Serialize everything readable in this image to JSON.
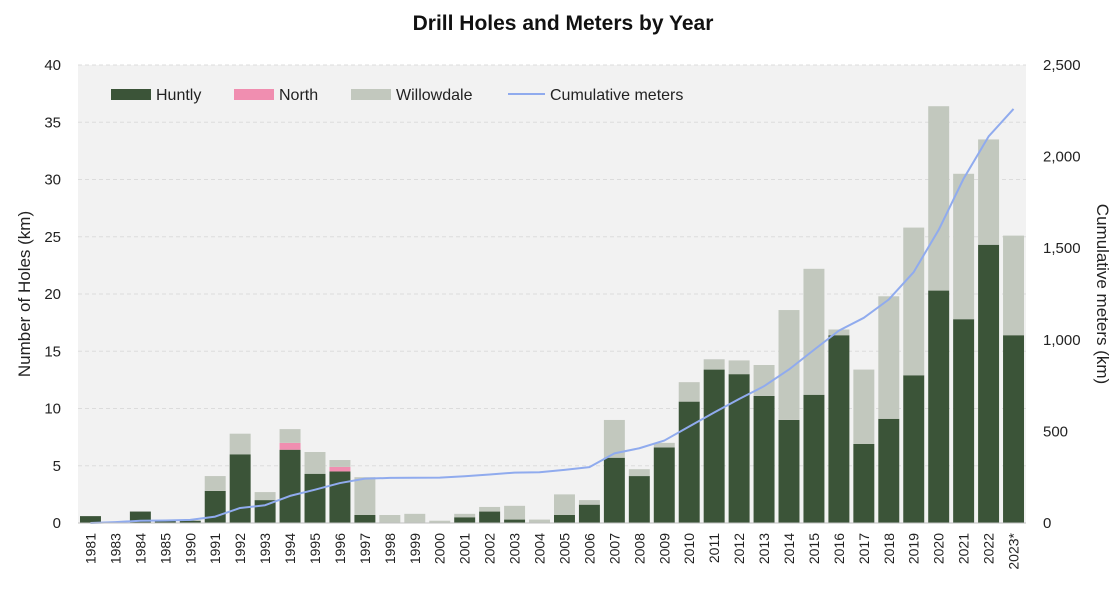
{
  "chart_data": {
    "type": "bar",
    "title": "Drill Holes and Meters by Year",
    "ylabel": "Number of Holes (km)",
    "y2label": "Cumulative meters (km)",
    "ylim": [
      0,
      40
    ],
    "y2lim": [
      0,
      2500
    ],
    "yticks": [
      "0",
      "5",
      "10",
      "15",
      "20",
      "25",
      "30",
      "35",
      "40"
    ],
    "y2ticks": [
      "0",
      "500",
      "1,000",
      "1,500",
      "2,000",
      "2,500"
    ],
    "grid": true,
    "legend_position": "top-left",
    "categories": [
      "1981",
      "1983",
      "1984",
      "1985",
      "1990",
      "1991",
      "1992",
      "1993",
      "1994",
      "1995",
      "1996",
      "1997",
      "1998",
      "1999",
      "2000",
      "2001",
      "2002",
      "2003",
      "2004",
      "2005",
      "2006",
      "2007",
      "2008",
      "2009",
      "2010",
      "2011",
      "2012",
      "2013",
      "2014",
      "2015",
      "2016",
      "2017",
      "2018",
      "2019",
      "2020",
      "2021",
      "2022",
      "2023*"
    ],
    "series": [
      {
        "name": "Huntly",
        "kind": "bar",
        "color": "#3b5438",
        "values": [
          0.6,
          0,
          1.0,
          0.2,
          0.2,
          2.8,
          6.0,
          2.0,
          6.4,
          4.3,
          4.5,
          0.7,
          0,
          0,
          0,
          0.5,
          1.0,
          0.3,
          0,
          0.7,
          1.6,
          5.7,
          4.1,
          6.6,
          10.6,
          13.4,
          13.0,
          11.1,
          9.0,
          11.2,
          16.4,
          6.9,
          9.1,
          12.9,
          20.3,
          17.8,
          24.3,
          16.4
        ]
      },
      {
        "name": "North",
        "kind": "bar",
        "color": "#f08eb0",
        "values": [
          0,
          0,
          0,
          0,
          0,
          0,
          0,
          0,
          0.6,
          0,
          0.4,
          0,
          0,
          0,
          0,
          0,
          0,
          0,
          0,
          0,
          0,
          0,
          0,
          0,
          0,
          0,
          0,
          0,
          0,
          0,
          0,
          0,
          0,
          0,
          0,
          0,
          0,
          0
        ]
      },
      {
        "name": "Willowdale",
        "kind": "bar",
        "color": "#c2c8be",
        "values": [
          0,
          0,
          0,
          0,
          0,
          1.3,
          1.8,
          0.7,
          1.2,
          1.9,
          0.6,
          3.3,
          0.7,
          0.8,
          0.2,
          0.3,
          0.4,
          1.2,
          0.3,
          1.8,
          0.4,
          3.3,
          0.6,
          0.4,
          1.7,
          0.9,
          1.2,
          2.7,
          9.6,
          11.0,
          0.5,
          6.5,
          10.7,
          12.9,
          16.1,
          12.7,
          9.2,
          8.7
        ]
      },
      {
        "name": "Cumulative meters",
        "kind": "line",
        "axis": "secondary",
        "color": "#90abee",
        "values": [
          0,
          5,
          12,
          14,
          17,
          35,
          82,
          97,
          148,
          182,
          218,
          242,
          246,
          247,
          248,
          255,
          265,
          275,
          277,
          290,
          305,
          380,
          408,
          450,
          527,
          603,
          677,
          747,
          838,
          945,
          1050,
          1120,
          1220,
          1370,
          1600,
          1880,
          2110,
          2260
        ]
      }
    ]
  }
}
